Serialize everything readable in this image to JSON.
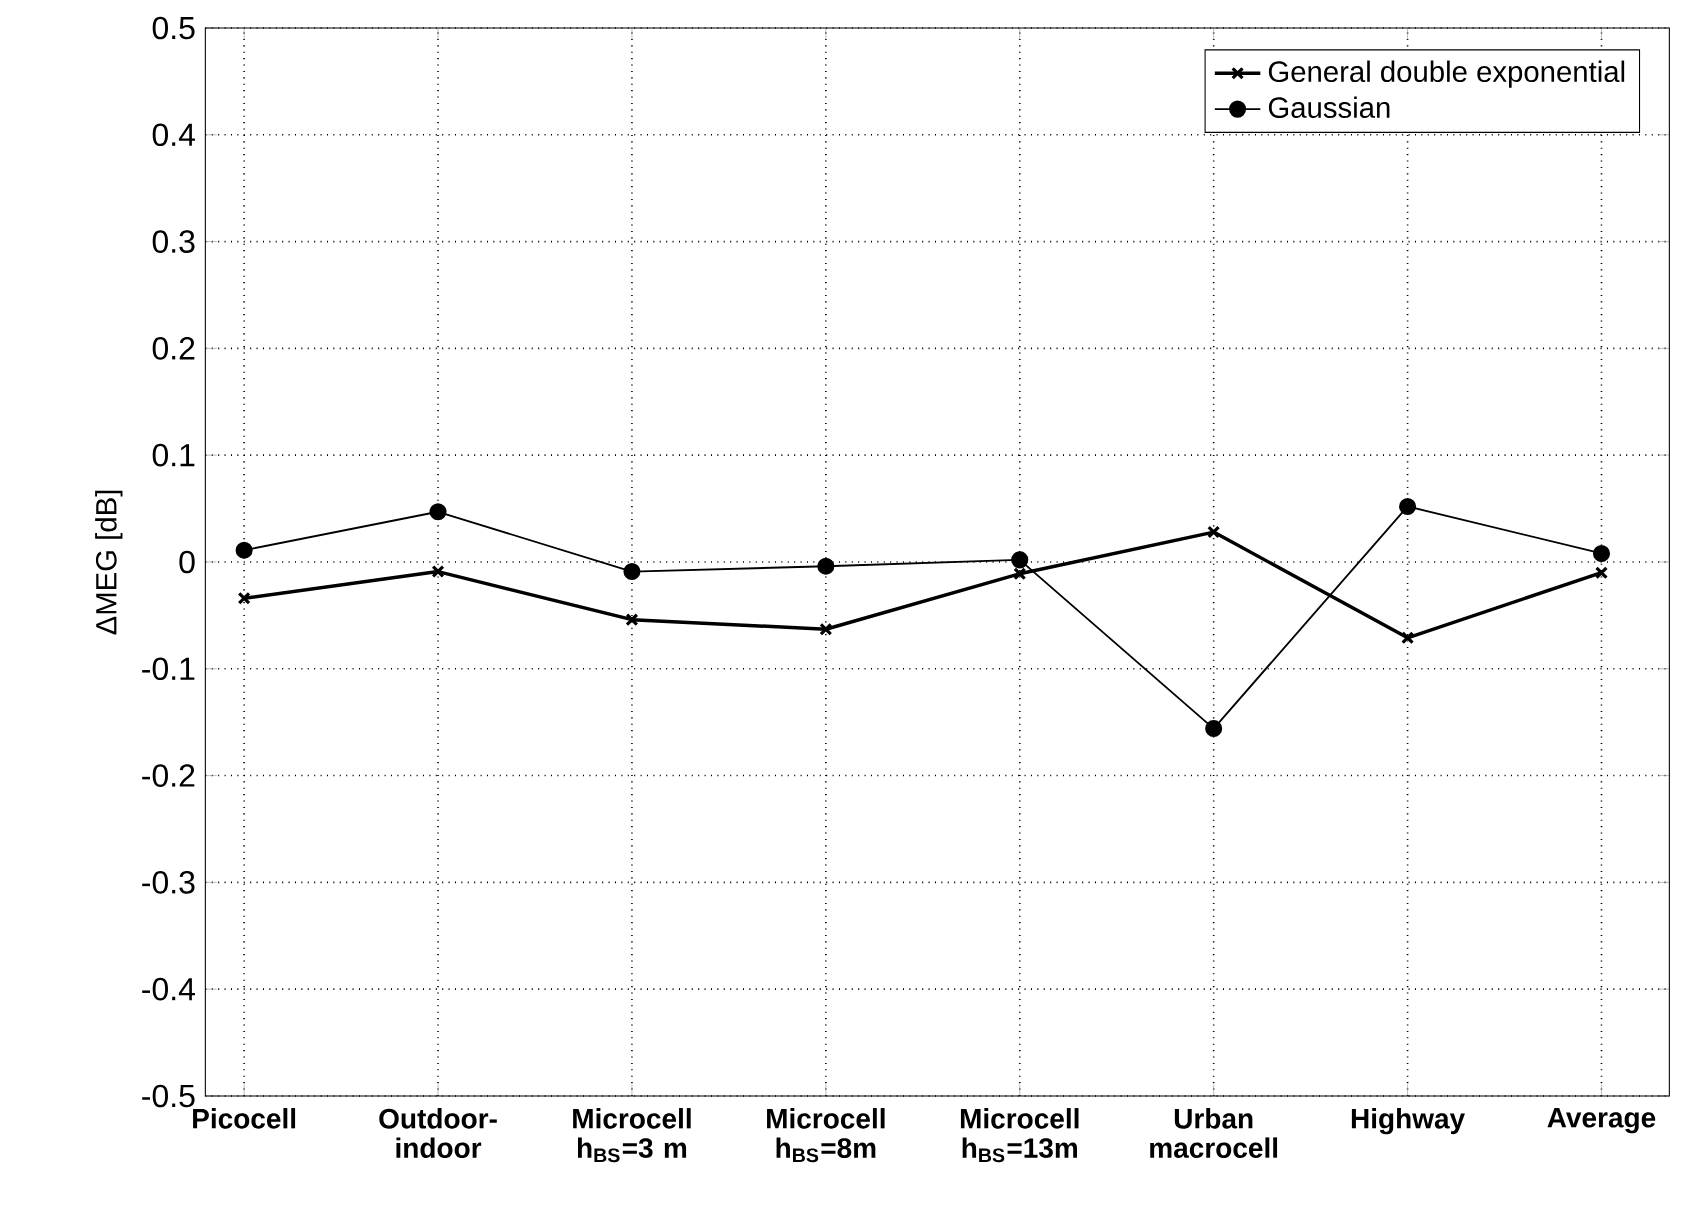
{
  "chart_data": {
    "type": "line",
    "ylabel": "ΔMEG [dB]",
    "categories": [
      "Picocell",
      "Outdoor-indoor",
      "Microcell h$_{BS}$=3 m",
      "Microcell h$_{BS}$=8m",
      "Microcell h$_{BS}$=13m",
      "Urban macrocell",
      "Highway",
      "Average"
    ],
    "series": [
      {
        "name": "General double exponential",
        "color": "#000000",
        "marker": "cross",
        "values": [
          -0.034,
          -0.009,
          -0.054,
          -0.063,
          -0.011,
          0.028,
          -0.071,
          -0.01
        ]
      },
      {
        "name": "Gaussian",
        "color": "#000000",
        "marker": "circle",
        "values": [
          0.011,
          0.047,
          -0.009,
          -0.004,
          0.002,
          -0.156,
          0.052,
          0.008
        ]
      }
    ],
    "ylim": [
      -0.5,
      0.5
    ],
    "yticks": [
      -0.5,
      -0.4,
      -0.3,
      -0.2,
      -0.1,
      0,
      0.1,
      0.2,
      0.3,
      0.4,
      0.5
    ],
    "grid": true,
    "legend": "top right",
    "line_style": "solid"
  }
}
